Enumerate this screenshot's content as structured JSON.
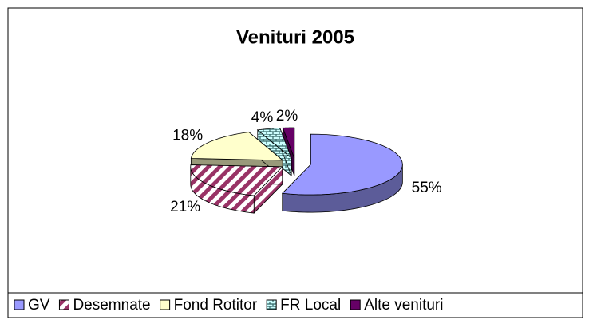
{
  "chart_data": {
    "type": "pie3d",
    "title": "Venituri 2005",
    "categories": [
      "GV",
      "Desemnate",
      "Fond Rotitor",
      "FR Local",
      "Alte venituri"
    ],
    "values": [
      55,
      21,
      18,
      4,
      2
    ],
    "value_labels": [
      "55%",
      "21%",
      "18%",
      "4%",
      "2%"
    ],
    "colors": [
      "#9999ff",
      "#993366",
      "#ffffcc",
      "#ccffff",
      "#660066"
    ],
    "legend": "bottom"
  }
}
